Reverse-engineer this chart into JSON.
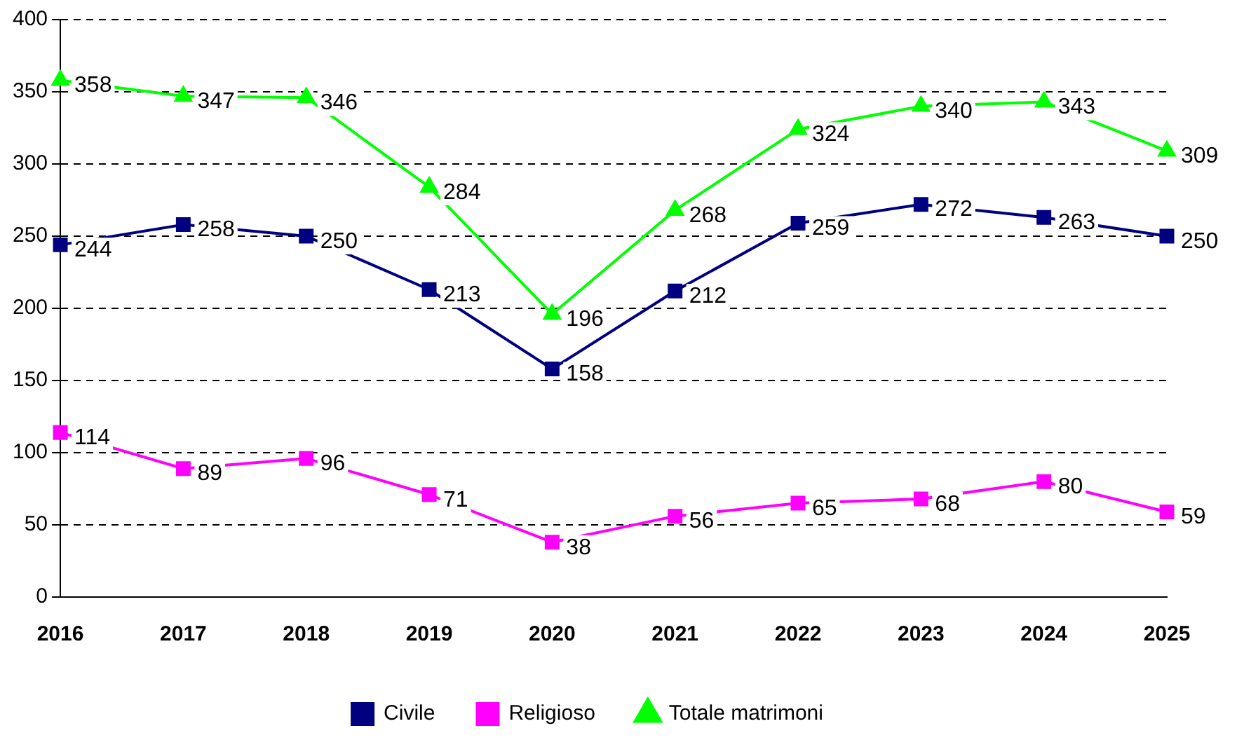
{
  "chart_data": {
    "type": "line",
    "categories": [
      "2016",
      "2017",
      "2018",
      "2019",
      "2020",
      "2021",
      "2022",
      "2023",
      "2024",
      "2025"
    ],
    "series": [
      {
        "name": "Civile",
        "color": "#000080",
        "marker": "square",
        "values": [
          244,
          258,
          250,
          213,
          158,
          212,
          259,
          272,
          263,
          250
        ]
      },
      {
        "name": "Religioso",
        "color": "#ff00ff",
        "marker": "square",
        "values": [
          114,
          89,
          96,
          71,
          38,
          56,
          65,
          68,
          80,
          59
        ]
      },
      {
        "name": "Totale matrimoni",
        "color": "#00ff00",
        "marker": "triangle",
        "values": [
          358,
          347,
          346,
          284,
          196,
          268,
          324,
          340,
          343,
          309
        ]
      }
    ],
    "ylim": [
      0,
      400
    ],
    "yticks": [
      0,
      50,
      100,
      150,
      200,
      250,
      300,
      350,
      400
    ],
    "grid": "y",
    "legend": "bottom",
    "data_labels": true
  }
}
